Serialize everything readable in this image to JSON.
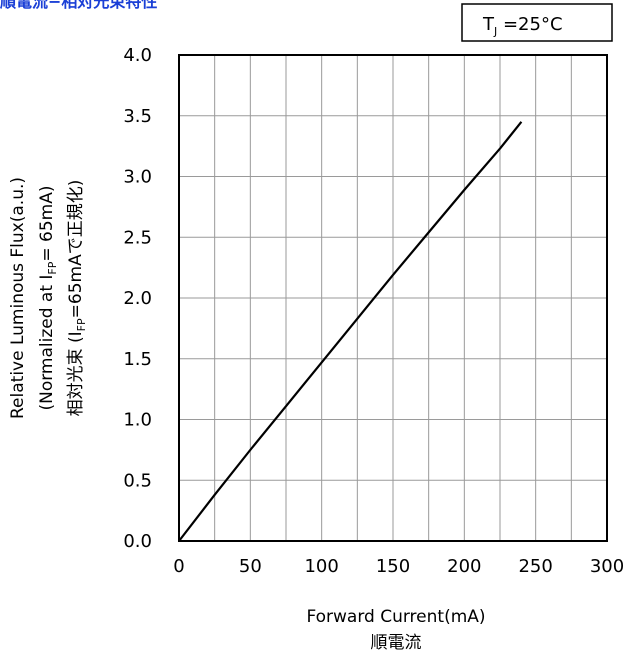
{
  "header": {
    "title": "順電流−相対光束特性"
  },
  "condition_box": {
    "label": "T",
    "subscript": "J",
    "value": " =25°C"
  },
  "chart_data": {
    "type": "line",
    "title": "順電流−相対光束特性",
    "xlabel": "Forward Current(mA)",
    "xlabel_jp": "順電流",
    "ylabel_lines": [
      {
        "parts": [
          {
            "t": "Relative Luminous Flux(a.u.)"
          }
        ]
      },
      {
        "parts": [
          {
            "t": "(Normalized  at I"
          },
          {
            "t": "FP",
            "sub": true
          },
          {
            "t": "= 65mA)"
          }
        ]
      },
      {
        "parts": [
          {
            "t": "相対光束 (I"
          },
          {
            "t": "FP",
            "sub": true
          },
          {
            "t": "=65mAで正規化)"
          }
        ]
      }
    ],
    "xlim": [
      0,
      300
    ],
    "ylim": [
      0,
      4.0
    ],
    "x_ticks": [
      0,
      50,
      100,
      150,
      200,
      250,
      300
    ],
    "y_ticks": [
      0,
      0.5,
      1.0,
      1.5,
      2.0,
      2.5,
      3.0,
      3.5,
      4.0
    ],
    "x_tick_labels": [
      "0",
      "50",
      "100",
      "150",
      "200",
      "250",
      "300"
    ],
    "y_tick_labels": [
      "0.0",
      "0.5",
      "1.0",
      "1.5",
      "2.0",
      "2.5",
      "3.0",
      "3.5",
      "4.0"
    ],
    "x_minor_step": 25,
    "grid": true,
    "series": [
      {
        "x": [
          0,
          25,
          50,
          75,
          100,
          125,
          150,
          175,
          200,
          225,
          240
        ],
        "y": [
          0,
          0.38,
          0.75,
          1.11,
          1.47,
          1.83,
          2.19,
          2.54,
          2.89,
          3.23,
          3.45
        ]
      }
    ],
    "line_color": "#000000"
  }
}
